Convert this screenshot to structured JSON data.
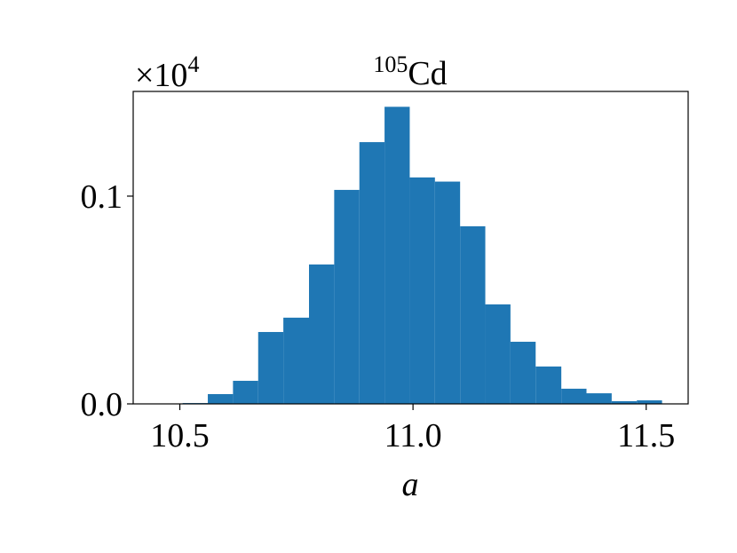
{
  "chart_data": {
    "type": "histogram",
    "title_superscript": "105",
    "title": "Cd",
    "x_label": "a",
    "y_offset_label": "×10",
    "y_offset_exponent": "4",
    "bins": [
      10.506,
      10.56,
      10.614,
      10.668,
      10.722,
      10.777,
      10.831,
      10.885,
      10.939,
      10.993,
      11.047,
      11.101,
      11.155,
      11.209,
      11.263,
      11.318,
      11.372,
      11.426,
      11.48,
      11.534
    ],
    "values": [
      0.0004,
      0.0047,
      0.0111,
      0.0346,
      0.0415,
      0.0671,
      0.103,
      0.126,
      0.143,
      0.109,
      0.107,
      0.0855,
      0.0479,
      0.0299,
      0.018,
      0.0073,
      0.0051,
      0.0013,
      0.0017
    ],
    "color": "#1f77b4",
    "xlim": [
      10.4,
      11.59
    ],
    "xticks": [
      10.5,
      {
        "value": 11,
        "label": "11.0"
      },
      11.5
    ],
    "ylim": [
      0,
      0.1504
    ],
    "yticks": [
      {
        "value": 0,
        "label": "0.0"
      },
      0.1
    ]
  }
}
